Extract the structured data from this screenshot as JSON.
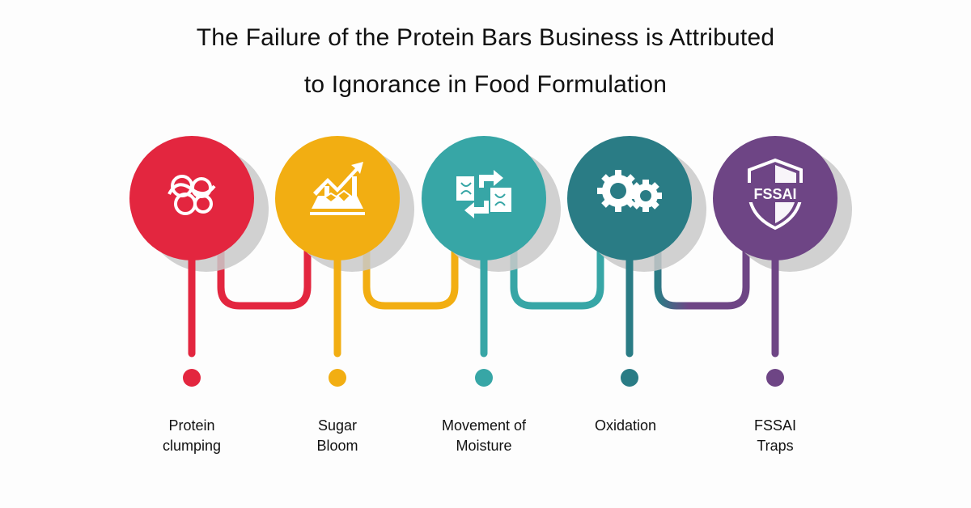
{
  "title": {
    "line1": "The Failure of the Protein Bars Business is Attributed",
    "line2": "to Ignorance in Food Formulation"
  },
  "steps": [
    {
      "line1": "Protein",
      "line2": "clumping",
      "icon": "tangled-protein-icon",
      "color": "#E3263F"
    },
    {
      "line1": "Sugar",
      "line2": "Bloom",
      "icon": "rising-chart-crystals-icon",
      "color": "#F2AE12"
    },
    {
      "line1": "Movement of",
      "line2": "Moisture",
      "icon": "exchange-arrows-icon",
      "color": "#37A6A6"
    },
    {
      "line1": "Oxidation",
      "line2": "",
      "icon": "gears-icon",
      "color": "#2A7C85"
    },
    {
      "line1": "FSSAI",
      "line2": "Traps",
      "icon": "shield-icon",
      "color": "#6E4585",
      "badge": "FSSAI"
    }
  ]
}
